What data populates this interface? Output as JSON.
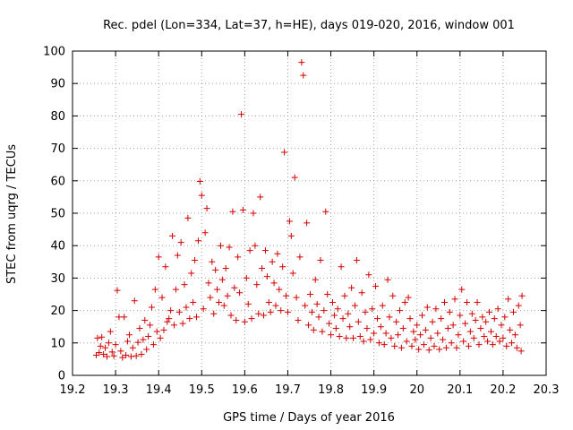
{
  "chart_data": {
    "type": "scatter",
    "title": "Rec. pdel (Lon=334, Lat=37, h=HE), days 019-020, 2016, window 001",
    "xlabel": "GPS time / Days of year 2016",
    "ylabel": "STEC from uqrg / TECUs",
    "xlim": [
      19.2,
      20.3
    ],
    "ylim": [
      0,
      100
    ],
    "xticks": [
      19.2,
      19.3,
      19.4,
      19.5,
      19.6,
      19.7,
      19.8,
      19.9,
      20,
      20.1,
      20.2,
      20.3
    ],
    "xtick_labels": [
      "19.2",
      "19.3",
      "19.4",
      "19.5",
      "19.6",
      "19.7",
      "19.8",
      "19.9",
      "20",
      "20.1",
      "20.2",
      "20.3"
    ],
    "yticks": [
      0,
      10,
      20,
      30,
      40,
      50,
      60,
      70,
      80,
      90,
      100
    ],
    "ytick_labels": [
      "0",
      "10",
      "20",
      "30",
      "40",
      "50",
      "60",
      "70",
      "80",
      "90",
      "100"
    ],
    "grid": true,
    "marker": "+",
    "color": "#d40000",
    "series": [
      {
        "name": "STEC",
        "points": [
          [
            19.255,
            6.2
          ],
          [
            19.258,
            11.5
          ],
          [
            19.262,
            7.0
          ],
          [
            19.265,
            9.0
          ],
          [
            19.268,
            11.8
          ],
          [
            19.272,
            6.5
          ],
          [
            19.276,
            8.5
          ],
          [
            19.28,
            5.8
          ],
          [
            19.284,
            10.0
          ],
          [
            19.288,
            13.5
          ],
          [
            19.292,
            7.2
          ],
          [
            19.296,
            6.0
          ],
          [
            19.3,
            9.5
          ],
          [
            19.304,
            26.2
          ],
          [
            19.308,
            18.0
          ],
          [
            19.312,
            7.5
          ],
          [
            19.316,
            5.5
          ],
          [
            19.32,
            18.0
          ],
          [
            19.324,
            6.2
          ],
          [
            19.328,
            10.5
          ],
          [
            19.332,
            12.5
          ],
          [
            19.336,
            5.8
          ],
          [
            19.34,
            8.5
          ],
          [
            19.344,
            23.0
          ],
          [
            19.348,
            6.0
          ],
          [
            19.352,
            10.2
          ],
          [
            19.356,
            14.5
          ],
          [
            19.36,
            6.5
          ],
          [
            19.364,
            11.0
          ],
          [
            19.368,
            17.0
          ],
          [
            19.372,
            8.0
          ],
          [
            19.376,
            12.0
          ],
          [
            19.38,
            15.5
          ],
          [
            19.384,
            21.0
          ],
          [
            19.388,
            9.5
          ],
          [
            19.392,
            26.5
          ],
          [
            19.396,
            13.5
          ],
          [
            19.4,
            36.5
          ],
          [
            19.404,
            11.5
          ],
          [
            19.408,
            24.0
          ],
          [
            19.412,
            14.0
          ],
          [
            19.416,
            33.5
          ],
          [
            19.42,
            16.5
          ],
          [
            19.424,
            17.5
          ],
          [
            19.428,
            20.0
          ],
          [
            19.432,
            43.0
          ],
          [
            19.436,
            15.5
          ],
          [
            19.44,
            26.5
          ],
          [
            19.444,
            37.0
          ],
          [
            19.448,
            19.5
          ],
          [
            19.452,
            41.0
          ],
          [
            19.456,
            16.0
          ],
          [
            19.46,
            28.0
          ],
          [
            19.464,
            21.0
          ],
          [
            19.468,
            48.5
          ],
          [
            19.472,
            17.5
          ],
          [
            19.476,
            31.5
          ],
          [
            19.48,
            22.5
          ],
          [
            19.484,
            35.5
          ],
          [
            19.488,
            18.0
          ],
          [
            19.492,
            41.5
          ],
          [
            19.496,
            59.8
          ],
          [
            19.5,
            55.5
          ],
          [
            19.504,
            20.5
          ],
          [
            19.508,
            44.0
          ],
          [
            19.512,
            51.5
          ],
          [
            19.516,
            28.5
          ],
          [
            19.52,
            24.0
          ],
          [
            19.524,
            35.0
          ],
          [
            19.528,
            19.0
          ],
          [
            19.532,
            32.5
          ],
          [
            19.536,
            26.5
          ],
          [
            19.54,
            22.5
          ],
          [
            19.544,
            40.0
          ],
          [
            19.548,
            29.5
          ],
          [
            19.552,
            21.5
          ],
          [
            19.556,
            33.0
          ],
          [
            19.56,
            24.5
          ],
          [
            19.564,
            39.5
          ],
          [
            19.568,
            18.5
          ],
          [
            19.572,
            50.5
          ],
          [
            19.576,
            27.0
          ],
          [
            19.58,
            17.0
          ],
          [
            19.584,
            36.5
          ],
          [
            19.588,
            25.5
          ],
          [
            19.592,
            80.5
          ],
          [
            19.596,
            51.0
          ],
          [
            19.6,
            16.5
          ],
          [
            19.604,
            30.0
          ],
          [
            19.608,
            22.0
          ],
          [
            19.612,
            38.5
          ],
          [
            19.616,
            17.5
          ],
          [
            19.62,
            50.0
          ],
          [
            19.624,
            40.0
          ],
          [
            19.628,
            28.0
          ],
          [
            19.632,
            19.0
          ],
          [
            19.636,
            55.0
          ],
          [
            19.64,
            33.0
          ],
          [
            19.644,
            18.5
          ],
          [
            19.648,
            38.5
          ],
          [
            19.652,
            30.5
          ],
          [
            19.656,
            22.5
          ],
          [
            19.66,
            19.5
          ],
          [
            19.664,
            35.0
          ],
          [
            19.668,
            28.5
          ],
          [
            19.672,
            21.5
          ],
          [
            19.676,
            37.5
          ],
          [
            19.68,
            26.5
          ],
          [
            19.684,
            20.0
          ],
          [
            19.688,
            33.5
          ],
          [
            19.692,
            68.8
          ],
          [
            19.696,
            24.5
          ],
          [
            19.7,
            19.5
          ],
          [
            19.704,
            47.5
          ],
          [
            19.708,
            43.0
          ],
          [
            19.712,
            31.5
          ],
          [
            19.716,
            61.0
          ],
          [
            19.72,
            24.0
          ],
          [
            19.724,
            17.0
          ],
          [
            19.728,
            36.5
          ],
          [
            19.732,
            96.5
          ],
          [
            19.736,
            92.5
          ],
          [
            19.74,
            21.5
          ],
          [
            19.744,
            47.0
          ],
          [
            19.748,
            15.5
          ],
          [
            19.752,
            25.0
          ],
          [
            19.756,
            19.5
          ],
          [
            19.76,
            14.0
          ],
          [
            19.764,
            29.5
          ],
          [
            19.768,
            22.0
          ],
          [
            19.772,
            18.0
          ],
          [
            19.776,
            35.5
          ],
          [
            19.78,
            13.5
          ],
          [
            19.784,
            20.0
          ],
          [
            19.788,
            50.5
          ],
          [
            19.792,
            25.0
          ],
          [
            19.796,
            16.0
          ],
          [
            19.8,
            12.5
          ],
          [
            19.804,
            22.5
          ],
          [
            19.808,
            18.5
          ],
          [
            19.812,
            14.5
          ],
          [
            19.816,
            20.5
          ],
          [
            19.82,
            12.0
          ],
          [
            19.824,
            33.5
          ],
          [
            19.828,
            17.5
          ],
          [
            19.832,
            24.5
          ],
          [
            19.836,
            11.5
          ],
          [
            19.84,
            19.0
          ],
          [
            19.844,
            15.0
          ],
          [
            19.848,
            27.0
          ],
          [
            19.852,
            11.5
          ],
          [
            19.856,
            21.5
          ],
          [
            19.86,
            35.5
          ],
          [
            19.864,
            16.5
          ],
          [
            19.868,
            12.0
          ],
          [
            19.872,
            25.5
          ],
          [
            19.876,
            10.5
          ],
          [
            19.88,
            19.5
          ],
          [
            19.884,
            14.5
          ],
          [
            19.888,
            31.0
          ],
          [
            19.892,
            11.0
          ],
          [
            19.896,
            20.5
          ],
          [
            19.9,
            13.0
          ],
          [
            19.904,
            27.5
          ],
          [
            19.908,
            17.5
          ],
          [
            19.912,
            10.0
          ],
          [
            19.916,
            15.0
          ],
          [
            19.92,
            21.5
          ],
          [
            19.924,
            9.5
          ],
          [
            19.928,
            13.0
          ],
          [
            19.932,
            29.5
          ],
          [
            19.936,
            18.0
          ],
          [
            19.94,
            11.5
          ],
          [
            19.944,
            24.5
          ],
          [
            19.948,
            9.0
          ],
          [
            19.952,
            16.5
          ],
          [
            19.956,
            12.5
          ],
          [
            19.96,
            20.0
          ],
          [
            19.964,
            8.5
          ],
          [
            19.968,
            14.5
          ],
          [
            19.972,
            22.5
          ],
          [
            19.976,
            10.5
          ],
          [
            19.98,
            24.0
          ],
          [
            19.984,
            17.5
          ],
          [
            19.988,
            9.0
          ],
          [
            19.992,
            13.5
          ],
          [
            19.996,
            11.0
          ],
          [
            20.0,
            15.5
          ],
          [
            20.004,
            8.0
          ],
          [
            20.008,
            12.5
          ],
          [
            20.012,
            18.5
          ],
          [
            20.016,
            9.5
          ],
          [
            20.02,
            14.0
          ],
          [
            20.024,
            21.0
          ],
          [
            20.028,
            7.8
          ],
          [
            20.032,
            11.5
          ],
          [
            20.036,
            16.5
          ],
          [
            20.04,
            9.0
          ],
          [
            20.044,
            20.5
          ],
          [
            20.048,
            13.0
          ],
          [
            20.052,
            8.0
          ],
          [
            20.056,
            17.5
          ],
          [
            20.06,
            11.0
          ],
          [
            20.064,
            22.5
          ],
          [
            20.068,
            8.5
          ],
          [
            20.072,
            14.5
          ],
          [
            20.076,
            19.5
          ],
          [
            20.08,
            10.0
          ],
          [
            20.084,
            15.5
          ],
          [
            20.088,
            23.5
          ],
          [
            20.092,
            8.5
          ],
          [
            20.096,
            12.5
          ],
          [
            20.1,
            18.5
          ],
          [
            20.104,
            26.5
          ],
          [
            20.108,
            10.5
          ],
          [
            20.112,
            16.0
          ],
          [
            20.116,
            22.5
          ],
          [
            20.12,
            9.0
          ],
          [
            20.124,
            13.5
          ],
          [
            20.128,
            19.0
          ],
          [
            20.132,
            11.5
          ],
          [
            20.136,
            17.0
          ],
          [
            20.14,
            22.5
          ],
          [
            20.144,
            9.5
          ],
          [
            20.148,
            14.5
          ],
          [
            20.152,
            18.0
          ],
          [
            20.156,
            12.0
          ],
          [
            20.16,
            16.5
          ],
          [
            20.164,
            10.5
          ],
          [
            20.168,
            19.5
          ],
          [
            20.172,
            13.5
          ],
          [
            20.176,
            9.5
          ],
          [
            20.18,
            17.5
          ],
          [
            20.184,
            12.0
          ],
          [
            20.188,
            20.5
          ],
          [
            20.192,
            10.5
          ],
          [
            20.196,
            15.5
          ],
          [
            20.2,
            11.5
          ],
          [
            20.204,
            18.0
          ],
          [
            20.208,
            9.0
          ],
          [
            20.212,
            23.5
          ],
          [
            20.216,
            14.0
          ],
          [
            20.22,
            10.0
          ],
          [
            20.224,
            19.5
          ],
          [
            20.228,
            12.5
          ],
          [
            20.232,
            8.5
          ],
          [
            20.236,
            21.5
          ],
          [
            20.24,
            15.5
          ],
          [
            20.244,
            24.5
          ],
          [
            20.242,
            7.5
          ]
        ]
      }
    ]
  }
}
